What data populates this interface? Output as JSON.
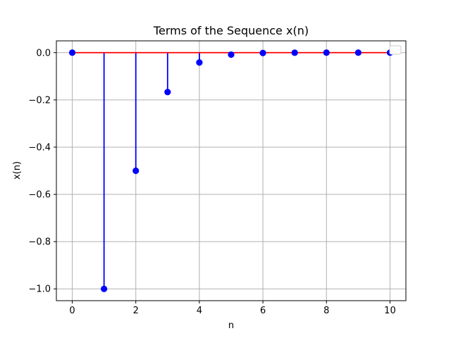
{
  "chart_data": {
    "type": "stem",
    "title": "Terms of the Sequence x(n)",
    "xlabel": "n",
    "ylabel": "x(n)",
    "x": [
      0,
      1,
      2,
      3,
      4,
      5,
      6,
      7,
      8,
      9,
      10
    ],
    "y": [
      0,
      -1.0,
      -0.5,
      -0.1667,
      -0.0417,
      -0.0083,
      -0.0014,
      -0.0002,
      0.0,
      0.0,
      0.0
    ],
    "xlim": [
      -0.5,
      10.5
    ],
    "ylim": [
      -1.05,
      0.05
    ],
    "xticks": [
      0,
      2,
      4,
      6,
      8,
      10
    ],
    "xtick_labels": [
      "0",
      "2",
      "4",
      "6",
      "8",
      "10"
    ],
    "yticks": [
      0.0,
      -0.2,
      -0.4,
      -0.6,
      -0.8,
      -1.0
    ],
    "ytick_labels": [
      "0.0",
      "−0.2",
      "−0.4",
      "−0.6",
      "−0.8",
      "−1.0"
    ],
    "grid": true,
    "legend": "top-right",
    "colors": {
      "stem": "#0000ff",
      "marker": "#0000ff",
      "baseline": "#ff0000",
      "grid": "#b0b0b0",
      "axes": "#000000"
    }
  }
}
